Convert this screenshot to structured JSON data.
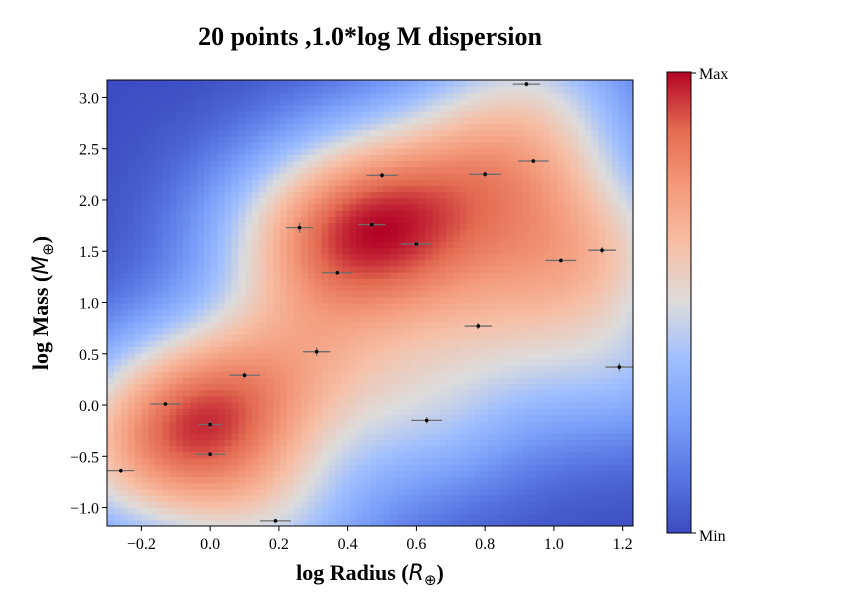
{
  "chart_data": {
    "type": "heatmap",
    "title": "20 points ,1.0*log M dispersion",
    "xlabel": "log Radius (R⊕)",
    "xlabel_main": "log Radius (",
    "xlabel_sym": "R",
    "xlabel_sub": "⊕",
    "xlabel_close": ")",
    "ylabel": "log Mass (M⊕)",
    "ylabel_main": "log Mass (",
    "ylabel_sym": "M",
    "ylabel_sub": "⊕",
    "ylabel_close": ")",
    "xlim": [
      -0.3,
      1.23
    ],
    "ylim": [
      -1.18,
      3.17
    ],
    "xticks": [
      -0.2,
      0.0,
      0.2,
      0.4,
      0.6,
      0.8,
      1.0,
      1.2
    ],
    "xtick_labels": [
      "−0.2",
      "0.0",
      "0.2",
      "0.4",
      "0.6",
      "0.8",
      "1.0",
      "1.2"
    ],
    "yticks": [
      -1.0,
      -0.5,
      0.0,
      0.5,
      1.0,
      1.5,
      2.0,
      2.5,
      3.0
    ],
    "ytick_labels": [
      "−1.0",
      "−0.5",
      "0.0",
      "0.5",
      "1.0",
      "1.5",
      "2.0",
      "2.5",
      "3.0"
    ],
    "colormap": "coolwarm",
    "colorbar": {
      "max_label": "Max",
      "min_label": "Min"
    },
    "points": [
      {
        "x": -0.26,
        "y": -0.64,
        "xerr": 0.04,
        "yerr": 0.02
      },
      {
        "x": -0.13,
        "y": 0.01,
        "xerr": 0.045,
        "yerr": 0.02
      },
      {
        "x": 0.0,
        "y": -0.19,
        "xerr": 0.035,
        "yerr": 0.04
      },
      {
        "x": 0.0,
        "y": -0.48,
        "xerr": 0.045,
        "yerr": 0.02
      },
      {
        "x": 0.1,
        "y": 0.29,
        "xerr": 0.045,
        "yerr": 0.03
      },
      {
        "x": 0.19,
        "y": -1.13,
        "xerr": 0.045,
        "yerr": 0.02
      },
      {
        "x": 0.26,
        "y": 1.73,
        "xerr": 0.04,
        "yerr": 0.05
      },
      {
        "x": 0.31,
        "y": 0.52,
        "xerr": 0.04,
        "yerr": 0.04
      },
      {
        "x": 0.37,
        "y": 1.29,
        "xerr": 0.045,
        "yerr": 0.02
      },
      {
        "x": 0.47,
        "y": 1.76,
        "xerr": 0.04,
        "yerr": 0.03
      },
      {
        "x": 0.5,
        "y": 2.24,
        "xerr": 0.045,
        "yerr": 0.03
      },
      {
        "x": 0.6,
        "y": 1.57,
        "xerr": 0.045,
        "yerr": 0.03
      },
      {
        "x": 0.63,
        "y": -0.15,
        "xerr": 0.045,
        "yerr": 0.03
      },
      {
        "x": 0.78,
        "y": 0.77,
        "xerr": 0.04,
        "yerr": 0.03
      },
      {
        "x": 0.8,
        "y": 2.25,
        "xerr": 0.045,
        "yerr": 0.03
      },
      {
        "x": 0.92,
        "y": 3.13,
        "xerr": 0.04,
        "yerr": 0.02
      },
      {
        "x": 0.94,
        "y": 2.38,
        "xerr": 0.045,
        "yerr": 0.02
      },
      {
        "x": 1.02,
        "y": 1.41,
        "xerr": 0.045,
        "yerr": 0.02
      },
      {
        "x": 1.14,
        "y": 1.51,
        "xerr": 0.04,
        "yerr": 0.03
      },
      {
        "x": 1.19,
        "y": 0.37,
        "xerr": 0.04,
        "yerr": 0.04
      }
    ]
  }
}
